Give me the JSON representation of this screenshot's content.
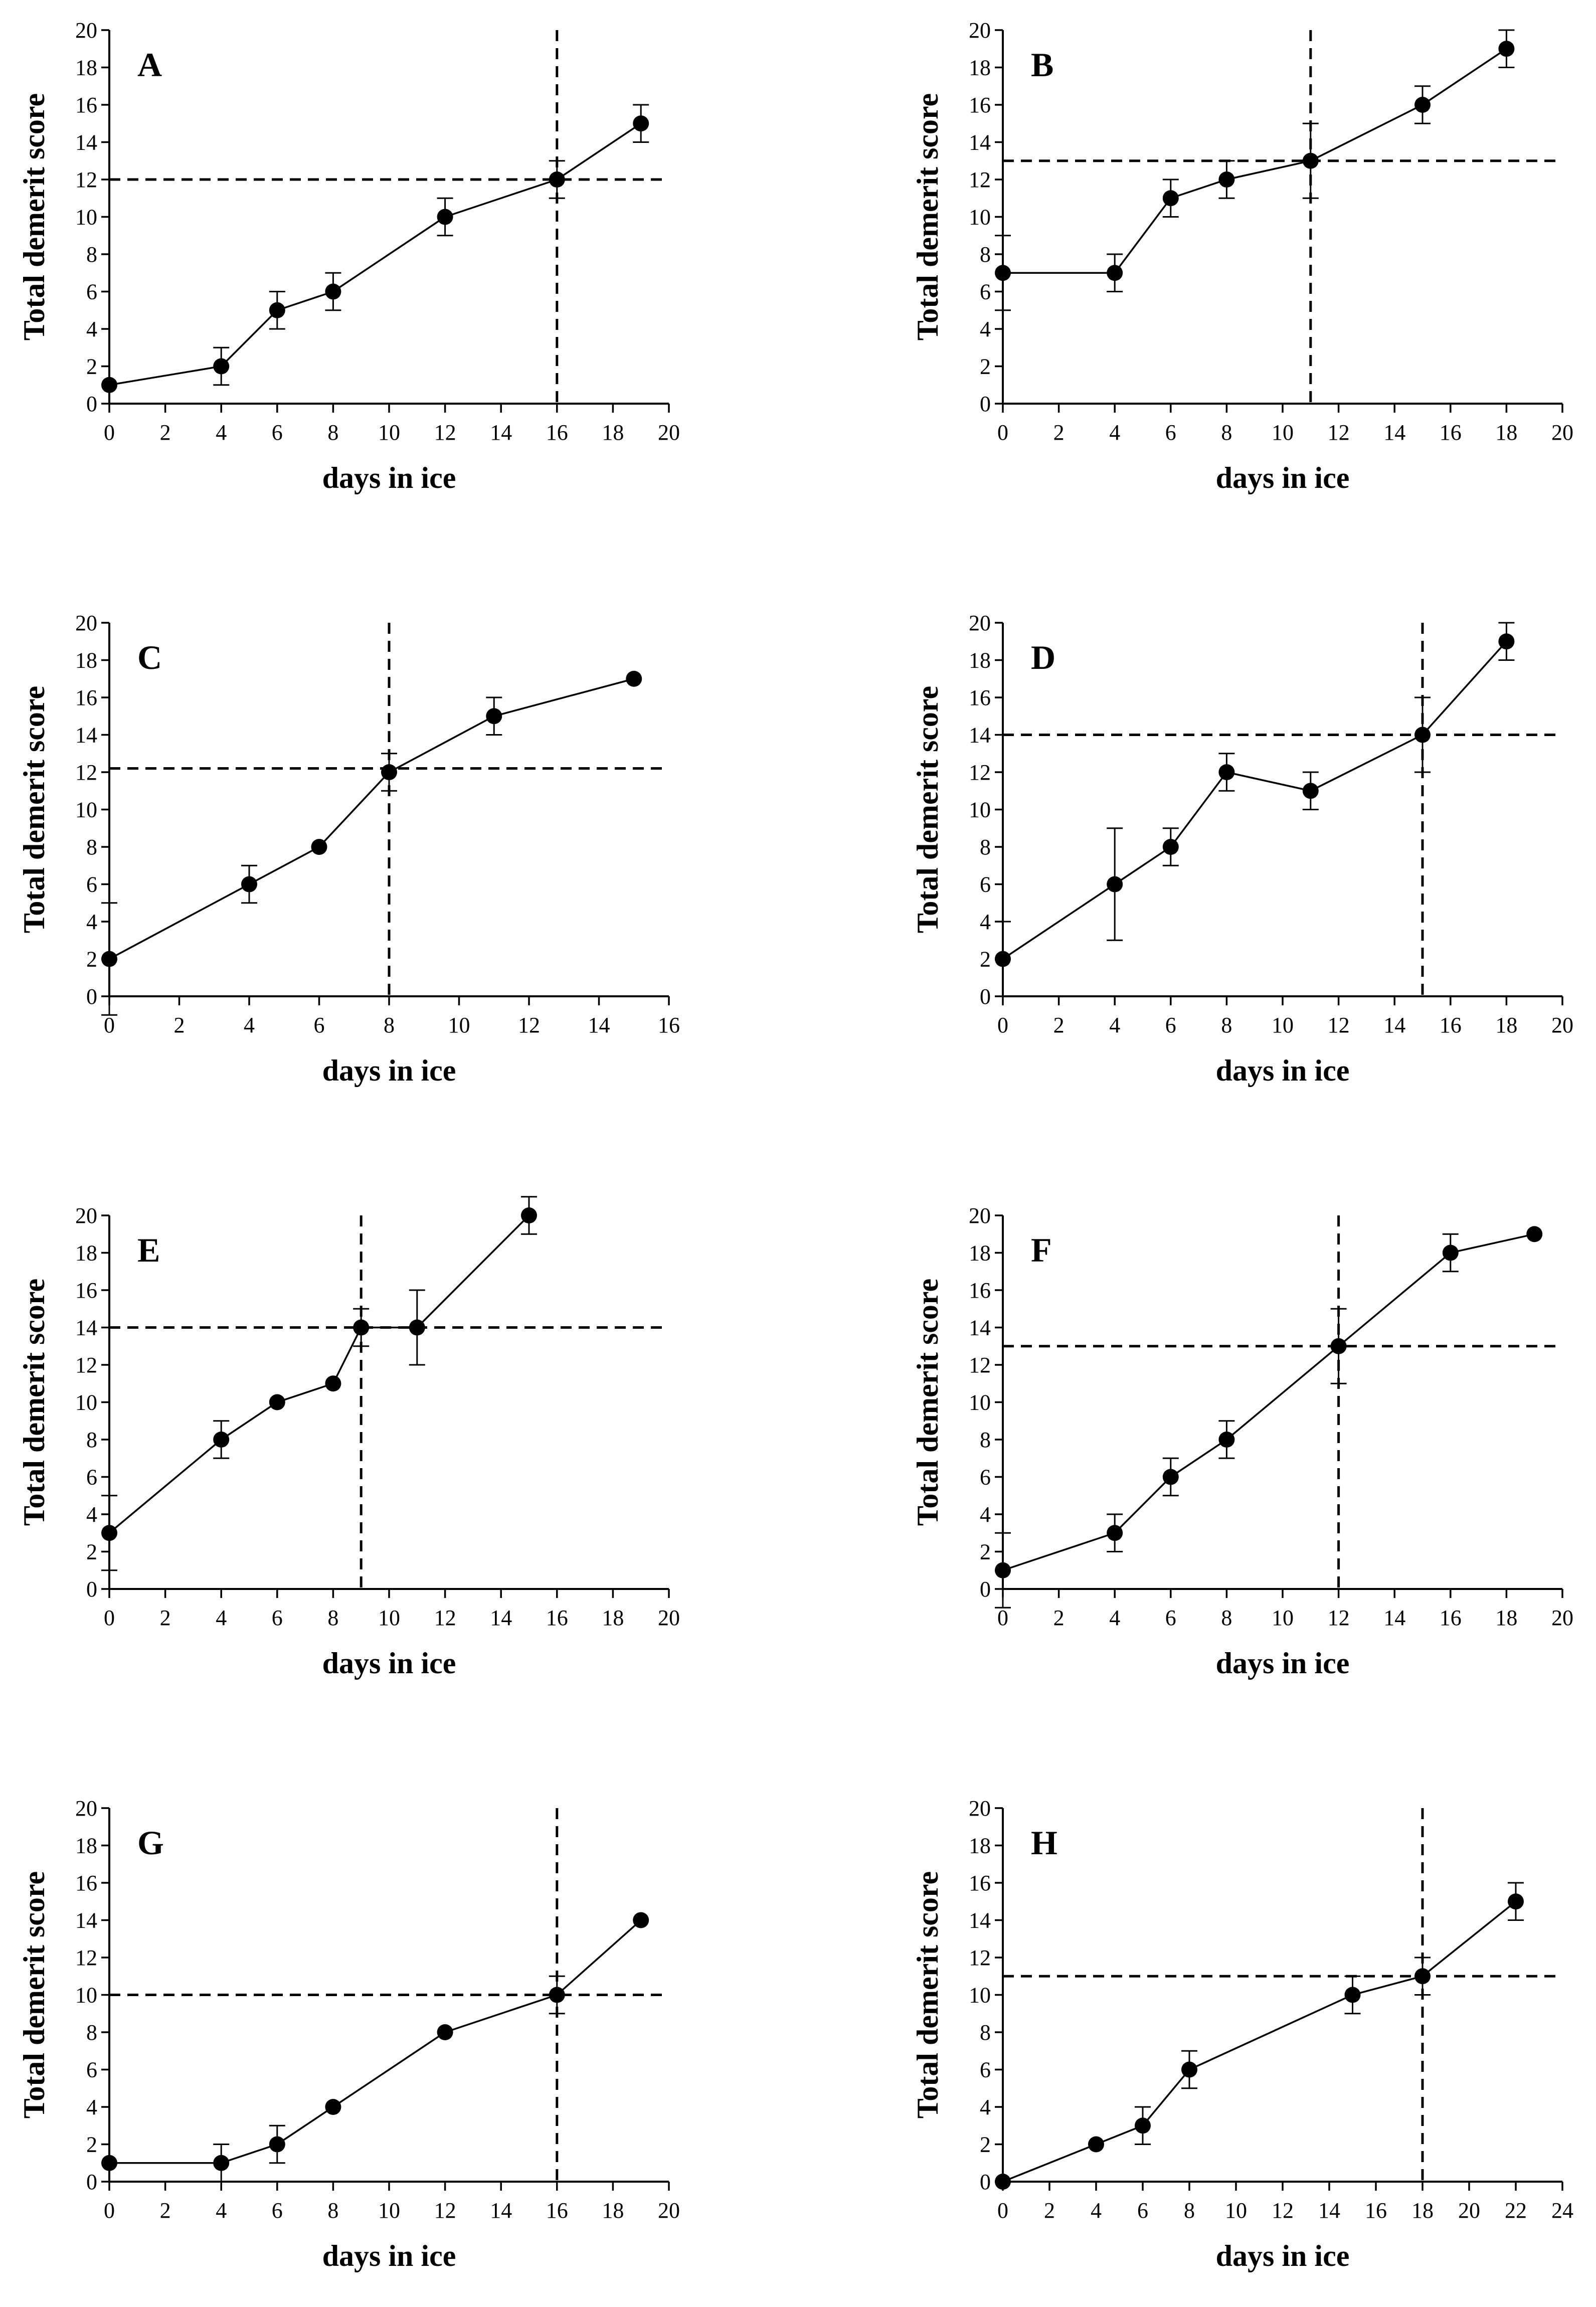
{
  "chart_data": [
    {
      "type": "line",
      "panel": "A",
      "xlabel": "days in ice",
      "ylabel": "Total demerit score",
      "xlim": [
        0,
        20
      ],
      "xstep": 2,
      "ylim": [
        0,
        20
      ],
      "ystep": 2,
      "points": [
        {
          "x": 0,
          "y": 1,
          "err": 0
        },
        {
          "x": 4,
          "y": 2,
          "err": 1
        },
        {
          "x": 6,
          "y": 5,
          "err": 1
        },
        {
          "x": 8,
          "y": 6,
          "err": 1
        },
        {
          "x": 12,
          "y": 10,
          "err": 1
        },
        {
          "x": 16,
          "y": 12,
          "err": 1
        },
        {
          "x": 19,
          "y": 15,
          "err": 1
        }
      ],
      "hline": 12,
      "vline": 16
    },
    {
      "type": "line",
      "panel": "B",
      "xlabel": "days in ice",
      "ylabel": "Total demerit score",
      "xlim": [
        0,
        20
      ],
      "xstep": 2,
      "ylim": [
        0,
        20
      ],
      "ystep": 2,
      "points": [
        {
          "x": 0,
          "y": 7,
          "err": 2
        },
        {
          "x": 4,
          "y": 7,
          "err": 1
        },
        {
          "x": 6,
          "y": 11,
          "err": 1
        },
        {
          "x": 8,
          "y": 12,
          "err": 1
        },
        {
          "x": 11,
          "y": 13,
          "err": 2
        },
        {
          "x": 15,
          "y": 16,
          "err": 1
        },
        {
          "x": 18,
          "y": 19,
          "err": 1
        }
      ],
      "hline": 13,
      "vline": 11
    },
    {
      "type": "line",
      "panel": "C",
      "xlabel": "days in ice",
      "ylabel": "Total demerit score",
      "xlim": [
        0,
        16
      ],
      "xstep": 2,
      "ylim": [
        0,
        20
      ],
      "ystep": 2,
      "points": [
        {
          "x": 0,
          "y": 2,
          "err": 3
        },
        {
          "x": 4,
          "y": 6,
          "err": 1
        },
        {
          "x": 6,
          "y": 8,
          "err": 0
        },
        {
          "x": 8,
          "y": 12,
          "err": 1
        },
        {
          "x": 11,
          "y": 15,
          "err": 1
        },
        {
          "x": 15,
          "y": 17,
          "err": 0
        }
      ],
      "hline": 12.2,
      "vline": 8
    },
    {
      "type": "line",
      "panel": "D",
      "xlabel": "days in ice",
      "ylabel": "Total demerit score",
      "xlim": [
        0,
        20
      ],
      "xstep": 2,
      "ylim": [
        0,
        20
      ],
      "ystep": 2,
      "points": [
        {
          "x": 0,
          "y": 2,
          "err": 2
        },
        {
          "x": 4,
          "y": 6,
          "err": 3
        },
        {
          "x": 6,
          "y": 8,
          "err": 1
        },
        {
          "x": 8,
          "y": 12,
          "err": 1
        },
        {
          "x": 11,
          "y": 11,
          "err": 1
        },
        {
          "x": 15,
          "y": 14,
          "err": 2
        },
        {
          "x": 18,
          "y": 19,
          "err": 1
        }
      ],
      "hline": 14,
      "vline": 15
    },
    {
      "type": "line",
      "panel": "E",
      "xlabel": "days in ice",
      "ylabel": "Total demerit score",
      "xlim": [
        0,
        20
      ],
      "xstep": 2,
      "ylim": [
        0,
        20
      ],
      "ystep": 2,
      "points": [
        {
          "x": 0,
          "y": 3,
          "err": 2
        },
        {
          "x": 4,
          "y": 8,
          "err": 1
        },
        {
          "x": 6,
          "y": 10,
          "err": 0
        },
        {
          "x": 8,
          "y": 11,
          "err": 0
        },
        {
          "x": 9,
          "y": 14,
          "err": 1
        },
        {
          "x": 11,
          "y": 14,
          "err": 2
        },
        {
          "x": 15,
          "y": 20,
          "err": 1
        }
      ],
      "hline": 14,
      "vline": 9
    },
    {
      "type": "line",
      "panel": "F",
      "xlabel": "days in ice",
      "ylabel": "Total demerit score",
      "xlim": [
        0,
        20
      ],
      "xstep": 2,
      "ylim": [
        0,
        20
      ],
      "ystep": 2,
      "points": [
        {
          "x": 0,
          "y": 1,
          "err": 2
        },
        {
          "x": 4,
          "y": 3,
          "err": 1
        },
        {
          "x": 6,
          "y": 6,
          "err": 1
        },
        {
          "x": 8,
          "y": 8,
          "err": 1
        },
        {
          "x": 12,
          "y": 13,
          "err": 2
        },
        {
          "x": 16,
          "y": 18,
          "err": 1
        },
        {
          "x": 19,
          "y": 19,
          "err": 0
        }
      ],
      "hline": 13,
      "vline": 12
    },
    {
      "type": "line",
      "panel": "G",
      "xlabel": "days in ice",
      "ylabel": "Total demerit score",
      "xlim": [
        0,
        20
      ],
      "xstep": 2,
      "ylim": [
        0,
        20
      ],
      "ystep": 2,
      "points": [
        {
          "x": 0,
          "y": 1,
          "err": 0
        },
        {
          "x": 4,
          "y": 1,
          "err": 1
        },
        {
          "x": 6,
          "y": 2,
          "err": 1
        },
        {
          "x": 8,
          "y": 4,
          "err": 0
        },
        {
          "x": 12,
          "y": 8,
          "err": 0
        },
        {
          "x": 16,
          "y": 10,
          "err": 1
        },
        {
          "x": 19,
          "y": 14,
          "err": 0
        }
      ],
      "hline": 10,
      "vline": 16
    },
    {
      "type": "line",
      "panel": "H",
      "xlabel": "days in ice",
      "ylabel": "Total demerit score",
      "xlim": [
        0,
        24
      ],
      "xstep": 2,
      "ylim": [
        0,
        20
      ],
      "ystep": 2,
      "points": [
        {
          "x": 0,
          "y": 0,
          "err": 0
        },
        {
          "x": 4,
          "y": 2,
          "err": 0
        },
        {
          "x": 6,
          "y": 3,
          "err": 1
        },
        {
          "x": 8,
          "y": 6,
          "err": 1
        },
        {
          "x": 15,
          "y": 10,
          "err": 1
        },
        {
          "x": 18,
          "y": 11,
          "err": 1
        },
        {
          "x": 22,
          "y": 15,
          "err": 1
        }
      ],
      "hline": 11,
      "vline": 18
    }
  ]
}
